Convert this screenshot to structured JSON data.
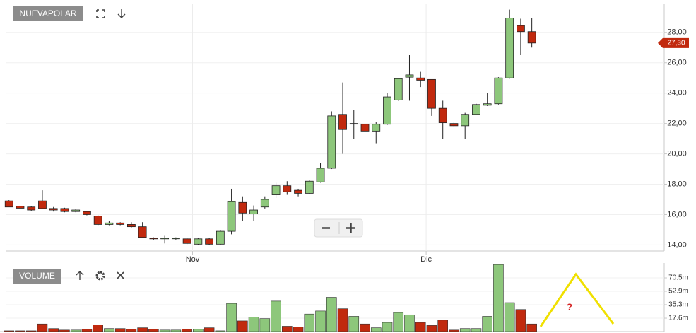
{
  "header": {
    "symbol": "NUEVAPOLAR"
  },
  "chart_data": [
    {
      "type": "candlestick",
      "categories": [
        null,
        null,
        null,
        null,
        null,
        null,
        null,
        null,
        null,
        null,
        null,
        null,
        null,
        null,
        null,
        null,
        null,
        null,
        null,
        null,
        null,
        null,
        null,
        null,
        null,
        null,
        null,
        null,
        null,
        null,
        null,
        null,
        null,
        null,
        null,
        null,
        null,
        null,
        null,
        null,
        null,
        null,
        null,
        null,
        null,
        null,
        null,
        null
      ],
      "open": [
        16.9,
        16.55,
        16.5,
        16.9,
        16.4,
        16.4,
        16.2,
        16.2,
        15.9,
        15.35,
        15.45,
        15.35,
        15.2,
        14.45,
        14.4,
        14.45,
        14.4,
        14.05,
        14.4,
        14.05,
        14.9,
        16.8,
        16.05,
        16.5,
        17.3,
        17.9,
        17.6,
        17.4,
        18.15,
        19.05,
        22.6,
        22.0,
        21.95,
        21.5,
        21.95,
        23.55,
        25.05,
        25.0,
        24.9,
        23.0,
        22.0,
        21.85,
        22.6,
        23.2,
        23.3,
        25.0,
        28.45,
        28.05
      ],
      "high": [
        16.95,
        16.6,
        16.55,
        17.6,
        16.5,
        16.45,
        16.35,
        16.25,
        15.95,
        15.6,
        15.5,
        15.5,
        15.5,
        14.5,
        14.6,
        14.5,
        14.45,
        14.45,
        14.45,
        14.95,
        17.7,
        17.2,
        16.6,
        17.2,
        18.1,
        18.2,
        17.7,
        18.3,
        19.4,
        22.8,
        24.7,
        22.9,
        22.2,
        22.1,
        24.0,
        25.0,
        26.5,
        25.4,
        24.9,
        23.5,
        22.1,
        22.7,
        23.3,
        24.0,
        25.05,
        29.5,
        28.9,
        28.95
      ],
      "low": [
        16.5,
        16.4,
        16.25,
        16.4,
        16.2,
        16.15,
        16.15,
        15.95,
        15.3,
        15.3,
        15.3,
        15.15,
        14.45,
        14.35,
        14.1,
        14.35,
        14.05,
        14.0,
        14.0,
        14.0,
        14.7,
        15.6,
        15.6,
        16.4,
        17.1,
        17.3,
        17.2,
        17.35,
        18.1,
        19.0,
        20.0,
        21.0,
        20.7,
        20.7,
        21.9,
        23.5,
        23.5,
        24.4,
        22.5,
        21.0,
        21.8,
        21.0,
        22.55,
        23.15,
        23.25,
        24.95,
        26.5,
        27.0
      ],
      "close": [
        16.5,
        16.42,
        16.3,
        16.4,
        16.3,
        16.2,
        16.3,
        16.0,
        15.35,
        15.45,
        15.35,
        15.2,
        14.5,
        14.4,
        14.45,
        14.45,
        14.1,
        14.4,
        14.05,
        14.9,
        16.85,
        16.1,
        16.3,
        17.0,
        17.9,
        17.5,
        17.4,
        18.2,
        19.05,
        22.5,
        21.6,
        22.0,
        21.5,
        21.95,
        23.75,
        24.95,
        25.2,
        24.85,
        23.0,
        22.05,
        21.85,
        22.6,
        23.25,
        23.3,
        25.0,
        28.95,
        28.05,
        27.3
      ],
      "up_color": "#8dc77b",
      "down_color": "#c1290e",
      "xlim": [
        -0.3,
        58.9
      ],
      "xticks": [
        {
          "value": 16.5,
          "label": "Nov"
        },
        {
          "value": 37.5,
          "label": "Dic"
        }
      ],
      "ylim": [
        13.6,
        29.9
      ],
      "yticks": [
        {
          "value": 14,
          "label": "14,00"
        },
        {
          "value": 16,
          "label": "16,00"
        },
        {
          "value": 18,
          "label": "18,00"
        },
        {
          "value": 20,
          "label": "20,00"
        },
        {
          "value": 22,
          "label": "22,00"
        },
        {
          "value": 24,
          "label": "24,00"
        },
        {
          "value": 26,
          "label": "26,00"
        },
        {
          "value": 28,
          "label": "28,00"
        }
      ],
      "last_price": {
        "value": 27.3,
        "label": "27,30"
      },
      "grid": true
    },
    {
      "type": "bar",
      "title": "VOLUME",
      "values": [
        1,
        1,
        1,
        10,
        4,
        2,
        2,
        3,
        9,
        4,
        4,
        3,
        5,
        3,
        2,
        2,
        3,
        3,
        5,
        1,
        37,
        14,
        19,
        17,
        40,
        7,
        6,
        23,
        27,
        45,
        30,
        20,
        10,
        5,
        12,
        25,
        22,
        12,
        8,
        15,
        2,
        4,
        4,
        20,
        88,
        38,
        29,
        10
      ],
      "ylim": [
        0,
        90
      ],
      "yticks": [
        {
          "value": 17.6,
          "label": "17.6m"
        },
        {
          "value": 35.3,
          "label": "35.3m"
        },
        {
          "value": 52.9,
          "label": "52.9m"
        },
        {
          "value": 70.5,
          "label": "70.5m"
        }
      ],
      "annotation": "?"
    }
  ]
}
